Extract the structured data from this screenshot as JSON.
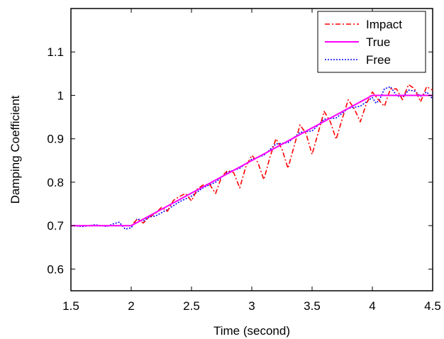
{
  "chart_data": {
    "type": "line",
    "title": "",
    "xlabel": "Time (second)",
    "ylabel": "Damping Coefficient",
    "xlim": [
      1.5,
      4.5
    ],
    "ylim": [
      0.55,
      1.2
    ],
    "xticks": [
      1.5,
      2,
      2.5,
      3,
      3.5,
      4,
      4.5
    ],
    "xtick_labels": [
      "1.5",
      "2",
      "2.5",
      "3",
      "3.5",
      "4",
      "4.5"
    ],
    "yticks": [
      0.6,
      0.7,
      0.8,
      0.9,
      1.0,
      1.1
    ],
    "ytick_labels": [
      "0.6",
      "0.7",
      "0.8",
      "0.9",
      "1",
      "1.1"
    ],
    "grid": false,
    "legend_position": "top-right",
    "series": [
      {
        "name": "Impact",
        "color": "#ff0000",
        "style": "dashdot",
        "x": [
          1.5,
          1.8,
          2.0,
          2.05,
          2.1,
          2.15,
          2.2,
          2.25,
          2.3,
          2.35,
          2.4,
          2.45,
          2.5,
          2.55,
          2.6,
          2.65,
          2.7,
          2.75,
          2.8,
          2.85,
          2.9,
          2.95,
          3.0,
          3.05,
          3.1,
          3.15,
          3.2,
          3.25,
          3.3,
          3.35,
          3.4,
          3.45,
          3.5,
          3.55,
          3.6,
          3.65,
          3.7,
          3.75,
          3.8,
          3.85,
          3.9,
          3.95,
          4.0,
          4.05,
          4.1,
          4.15,
          4.2,
          4.25,
          4.3,
          4.35,
          4.4,
          4.45,
          4.5
        ],
        "y": [
          0.7,
          0.7,
          0.7,
          0.715,
          0.706,
          0.72,
          0.728,
          0.742,
          0.733,
          0.758,
          0.767,
          0.774,
          0.757,
          0.785,
          0.794,
          0.795,
          0.774,
          0.813,
          0.827,
          0.822,
          0.787,
          0.835,
          0.862,
          0.846,
          0.806,
          0.857,
          0.9,
          0.877,
          0.832,
          0.882,
          0.932,
          0.912,
          0.864,
          0.913,
          0.963,
          0.94,
          0.899,
          0.946,
          0.99,
          0.969,
          0.939,
          0.981,
          1.008,
          0.99,
          0.975,
          1.015,
          1.015,
          0.99,
          1.025,
          1.015,
          0.985,
          1.02,
          1.012
        ]
      },
      {
        "name": "True",
        "color": "#ff00ff",
        "style": "solid",
        "x": [
          1.5,
          2.0,
          4.0,
          4.5
        ],
        "y": [
          0.7,
          0.7,
          1.0,
          1.0
        ]
      },
      {
        "name": "Free",
        "color": "#0000ff",
        "style": "dotted",
        "x": [
          1.5,
          1.6,
          1.7,
          1.8,
          1.85,
          1.9,
          1.95,
          2.0,
          2.05,
          2.1,
          2.15,
          2.2,
          2.3,
          2.4,
          2.5,
          2.6,
          2.7,
          2.8,
          2.9,
          3.0,
          3.1,
          3.2,
          3.3,
          3.4,
          3.5,
          3.6,
          3.7,
          3.8,
          3.9,
          4.0,
          4.03,
          4.06,
          4.1,
          4.15,
          4.2,
          4.25,
          4.3,
          4.35,
          4.4,
          4.45,
          4.5
        ],
        "y": [
          0.7,
          0.698,
          0.702,
          0.698,
          0.704,
          0.708,
          0.692,
          0.695,
          0.716,
          0.71,
          0.72,
          0.722,
          0.737,
          0.755,
          0.768,
          0.788,
          0.8,
          0.823,
          0.832,
          0.853,
          0.862,
          0.888,
          0.891,
          0.915,
          0.918,
          0.945,
          0.948,
          0.97,
          0.975,
          0.995,
          0.982,
          0.99,
          1.015,
          1.02,
          1.0,
          0.995,
          1.012,
          1.01,
          0.998,
          1.008,
          0.992
        ]
      }
    ]
  }
}
